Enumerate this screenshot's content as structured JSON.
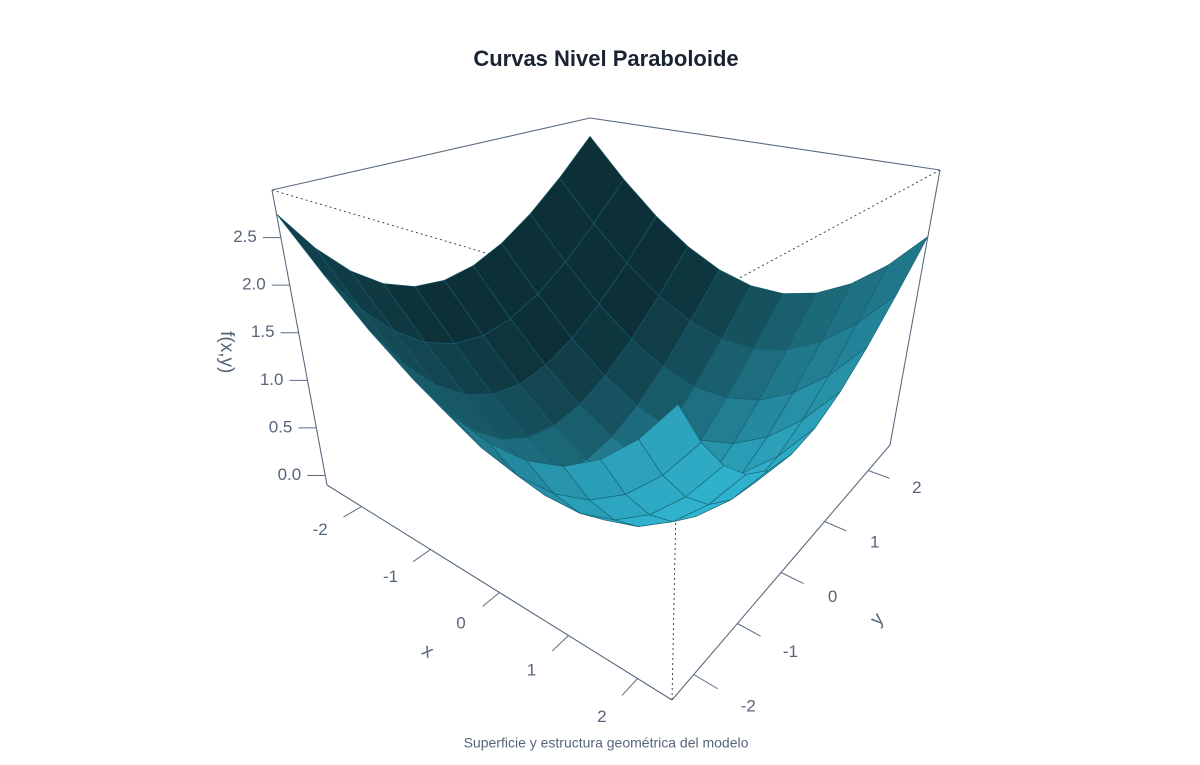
{
  "chart_data": {
    "type": "surface",
    "title": "Curvas Nivel Paraboloide",
    "caption": "Superficie y estructura geométrica del modelo",
    "xlabel": "x",
    "ylabel": "y",
    "zlabel": "f(x,y)",
    "color": "#2ba0b9",
    "x": [
      -2.5,
      -2,
      -1.5,
      -1,
      -0.5,
      0,
      0.5,
      1,
      1.5,
      2,
      2.5
    ],
    "y": [
      -2.5,
      -2,
      -1.5,
      -1,
      -0.5,
      0,
      0.5,
      1,
      1.5,
      2,
      2.5
    ],
    "z": [
      [
        2.75,
        2.3,
        1.95,
        1.7,
        1.55,
        1.5,
        1.55,
        1.7,
        1.95,
        2.3,
        2.75
      ],
      [
        2.25,
        1.8,
        1.45,
        1.2,
        1.05,
        1.0,
        1.05,
        1.2,
        1.45,
        1.8,
        2.25
      ],
      [
        1.85,
        1.4,
        1.05,
        0.8,
        0.65,
        0.6,
        0.65,
        0.8,
        1.05,
        1.4,
        1.85
      ],
      [
        1.55,
        1.1,
        0.75,
        0.5,
        0.35,
        0.3,
        0.35,
        0.5,
        0.75,
        1.1,
        1.55
      ],
      [
        1.35,
        0.9,
        0.55,
        0.3,
        0.15,
        0.1,
        0.15,
        0.3,
        0.55,
        0.9,
        1.35
      ],
      [
        1.25,
        0.8,
        0.45,
        0.2,
        0.05,
        0,
        0.05,
        0.2,
        0.45,
        0.8,
        1.25
      ],
      [
        1.25,
        0.8,
        0.45,
        0.2,
        0.05,
        0,
        0.05,
        0.2,
        0.45,
        0.8,
        1.25
      ],
      [
        1.35,
        0.9,
        0.55,
        0.3,
        0.15,
        0.1,
        0.15,
        0.3,
        0.55,
        0.9,
        1.35
      ],
      [
        1.55,
        1.1,
        0.75,
        0.5,
        0.35,
        0.3,
        0.35,
        0.5,
        0.75,
        1.1,
        1.55
      ],
      [
        1.85,
        1.4,
        1.05,
        0.8,
        0.65,
        0.6,
        0.65,
        0.8,
        1.05,
        1.4,
        1.85
      ],
      [
        2.25,
        1.8,
        1.45,
        1.2,
        1.05,
        1.0,
        1.05,
        1.2,
        1.45,
        1.8,
        2.25
      ]
    ],
    "xlim": [
      -2.5,
      2.5
    ],
    "ylim": [
      -2.5,
      2.5
    ],
    "zlim": [
      -0.1,
      3.0
    ],
    "xticks": [
      -2,
      -1,
      0,
      1,
      2
    ],
    "yticks": [
      -2,
      -1,
      0,
      1,
      2
    ],
    "zticks": [
      {
        "value": 0,
        "label": "0.0"
      },
      0.5,
      {
        "value": 1,
        "label": "1.0"
      },
      1.5,
      {
        "value": 2,
        "label": "2.0"
      },
      2.5
    ]
  }
}
